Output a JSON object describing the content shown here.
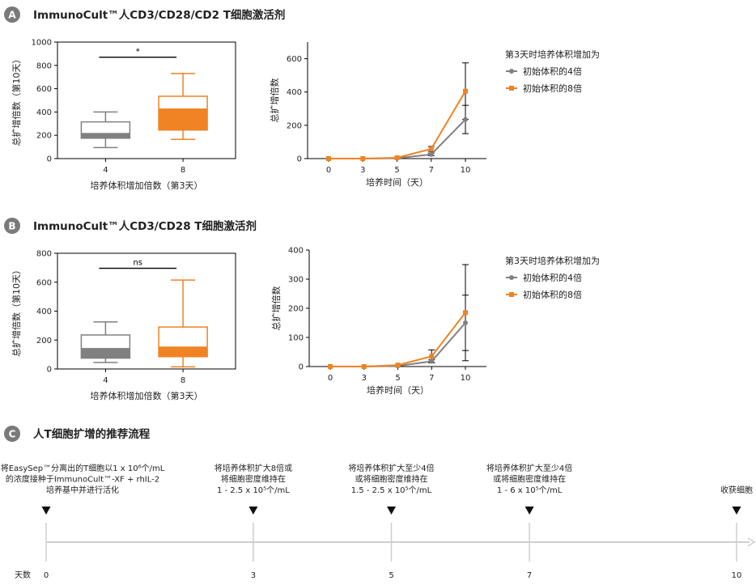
{
  "colors": {
    "gray": "#808080",
    "orange": "#F08324",
    "badge": "#7a7a7a",
    "axis": "#000000",
    "timeline": "#cfcfcf"
  },
  "panels": {
    "A": {
      "badge": "A",
      "title": "ImmunoCult™人CD3/CD28/CD2 T细胞激活剂"
    },
    "B": {
      "badge": "B",
      "title": "ImmunoCult™人CD3/CD28 T细胞激活剂"
    },
    "C": {
      "badge": "C",
      "title": "人T细胞扩增的推荐流程"
    }
  },
  "chart_data": [
    {
      "id": "A-box",
      "type": "box",
      "categories": [
        "4",
        "8"
      ],
      "xlabel": "培养体积增加倍数（第3天）",
      "ylabel": "总扩增倍数（第10天）",
      "ylim": [
        0,
        1000
      ],
      "yticks": [
        0,
        200,
        400,
        600,
        800,
        1000
      ],
      "significance": "*",
      "boxes": [
        {
          "category": "4",
          "min": 95,
          "q1": 175,
          "median": 220,
          "q3": 315,
          "max": 400,
          "color": "gray"
        },
        {
          "category": "8",
          "min": 165,
          "q1": 245,
          "median": 430,
          "q3": 535,
          "max": 730,
          "color": "orange"
        }
      ]
    },
    {
      "id": "A-line",
      "type": "line",
      "x": [
        0,
        3,
        5,
        7,
        10
      ],
      "xlabel": "培养时间（天）",
      "ylabel": "总扩增倍数",
      "ylim": [
        0,
        700
      ],
      "yticks": [
        0,
        200,
        400,
        600
      ],
      "legend_title": "第3天时培养体积增加为",
      "series": [
        {
          "name": "初始体积的4倍",
          "color": "gray",
          "marker": "circle",
          "values": [
            0,
            0,
            2,
            25,
            235
          ],
          "err": [
            0,
            0,
            0,
            8,
            85
          ]
        },
        {
          "name": "初始体积的8倍",
          "color": "orange",
          "marker": "square",
          "values": [
            0,
            0,
            5,
            58,
            405
          ],
          "err": [
            0,
            0,
            0,
            15,
            170
          ]
        }
      ]
    },
    {
      "id": "B-box",
      "type": "box",
      "categories": [
        "4",
        "8"
      ],
      "xlabel": "培养体积增加倍数（第3天）",
      "ylabel": "总扩增倍数（第10天）",
      "ylim": [
        0,
        800
      ],
      "yticks": [
        0,
        200,
        400,
        600,
        800
      ],
      "significance": "ns",
      "boxes": [
        {
          "category": "4",
          "min": 45,
          "q1": 75,
          "median": 145,
          "q3": 235,
          "max": 325,
          "color": "gray"
        },
        {
          "category": "8",
          "min": 15,
          "q1": 85,
          "median": 155,
          "q3": 290,
          "max": 615,
          "color": "orange"
        }
      ]
    },
    {
      "id": "B-line",
      "type": "line",
      "x": [
        0,
        3,
        5,
        7,
        10
      ],
      "xlabel": "培养时间（天）",
      "ylabel": "总扩增倍数",
      "ylim": [
        0,
        400
      ],
      "yticks": [
        0,
        100,
        200,
        300,
        400
      ],
      "legend_title": "第3天时培养体积增加为",
      "series": [
        {
          "name": "初始体积的4倍",
          "color": "gray",
          "marker": "circle",
          "values": [
            0,
            0,
            2,
            18,
            150
          ],
          "err": [
            0,
            0,
            0,
            5,
            95
          ]
        },
        {
          "name": "初始体积的8倍",
          "color": "orange",
          "marker": "square",
          "values": [
            0,
            0,
            5,
            35,
            185
          ],
          "err": [
            0,
            0,
            0,
            22,
            165
          ]
        }
      ]
    }
  ],
  "timeline": {
    "day_label": "天数",
    "days": [
      "0",
      "3",
      "5",
      "7",
      "10"
    ],
    "day_values": [
      0,
      3,
      5,
      7,
      10
    ],
    "steps": [
      {
        "lines": [
          "将EasySep™分离出的T细胞以1 x 10⁶个/mL",
          "的浓度接种于ImmunoCult™-XF + rhIL-2",
          "培养基中并进行活化"
        ]
      },
      {
        "lines": [
          "将培养体积扩大8倍或",
          "将细胞密度维持在",
          "1 - 2.5 x 10⁵个/mL"
        ]
      },
      {
        "lines": [
          "将培养体积扩大至少4倍",
          "或将细胞密度维持在",
          "1.5 - 2.5 x 10⁵个/mL"
        ]
      },
      {
        "lines": [
          "将培养体积扩大至少4倍",
          "或将细胞密度维持在",
          "1 - 6 x 10⁵个/mL"
        ]
      },
      {
        "lines": [
          "收获细胞"
        ]
      }
    ]
  }
}
